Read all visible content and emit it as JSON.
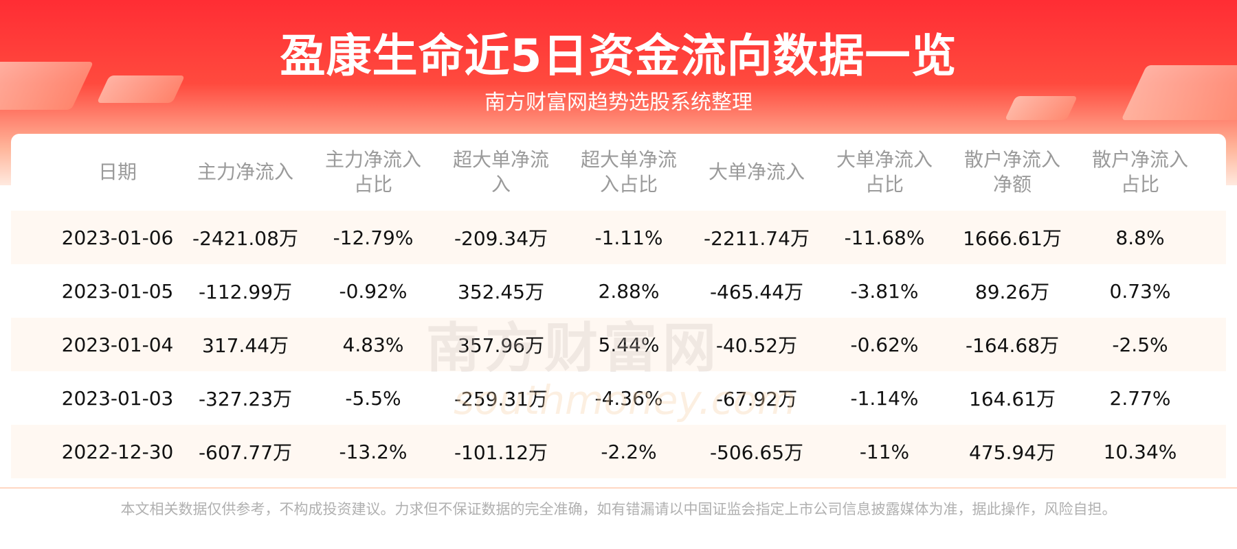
{
  "header": {
    "title": "盈康生命近5日资金流向数据一览",
    "subtitle": "南方财富网趋势选股系统整理"
  },
  "table": {
    "columns": [
      "日期",
      "主力净流入",
      "主力净流入占比",
      "超大单净流入",
      "超大单净流入占比",
      "大单净流入",
      "大单净流入占比",
      "散户净流入净额",
      "散户净流入占比"
    ],
    "rows": [
      [
        "2023-01-06",
        "-2421.08万",
        "-12.79%",
        "-209.34万",
        "-1.11%",
        "-2211.74万",
        "-11.68%",
        "1666.61万",
        "8.8%"
      ],
      [
        "2023-01-05",
        "-112.99万",
        "-0.92%",
        "352.45万",
        "2.88%",
        "-465.44万",
        "-3.81%",
        "89.26万",
        "0.73%"
      ],
      [
        "2023-01-04",
        "317.44万",
        "4.83%",
        "357.96万",
        "5.44%",
        "-40.52万",
        "-0.62%",
        "-164.68万",
        "-2.5%"
      ],
      [
        "2023-01-03",
        "-327.23万",
        "-5.5%",
        "-259.31万",
        "-4.36%",
        "-67.92万",
        "-1.14%",
        "164.61万",
        "2.77%"
      ],
      [
        "2022-12-30",
        "-607.77万",
        "-13.2%",
        "-101.12万",
        "-2.2%",
        "-506.65万",
        "-11%",
        "475.94万",
        "10.34%"
      ]
    ]
  },
  "watermark": {
    "cn": "南方财富网",
    "en": "southmoney.com"
  },
  "footer": {
    "disclaimer": "本文相关数据仅供参考，不构成投资建议。力求但不保证数据的完全准确，如有错漏请以中国证监会指定上市公司信息披露媒体为准，据此操作，风险自担。"
  }
}
